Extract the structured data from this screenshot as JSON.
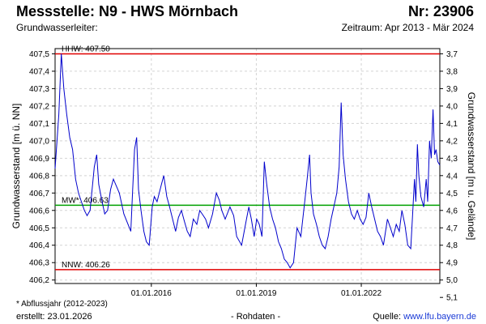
{
  "header": {
    "title": "Messstelle: N9 - HWS Mörnbach",
    "number": "Nr: 23906",
    "aquifer_label": "Grundwasserleiter:",
    "period": "Zeitraum: Apr 2013 - Mär 2024"
  },
  "footer": {
    "footnote": "* Abflussjahr (2012-2023)",
    "created": "erstellt:  23.01.2026",
    "raw_data": "- Rohdaten -",
    "source_prefix": "Quelle: ",
    "source": "www.lfu.bayern.de"
  },
  "chart_data": {
    "type": "line",
    "ylabel": "Grundwasserstand [m ü. NN]",
    "ylabel_right": "Grundwasserstand [m u. Gelände]",
    "ylim": [
      406.18,
      407.53
    ],
    "y_ticks": [
      "406,2",
      "406,3",
      "406,4",
      "406,5",
      "406,6",
      "406,7",
      "406,8",
      "406,9",
      "407,0",
      "407,1",
      "407,2",
      "407,3",
      "407,4",
      "407,5"
    ],
    "y_tick_values": [
      406.2,
      406.3,
      406.4,
      406.5,
      406.6,
      406.7,
      406.8,
      406.9,
      407.0,
      407.1,
      407.2,
      407.3,
      407.4,
      407.5
    ],
    "right_ticks": [
      "3,7",
      "3,8",
      "3,9",
      "4,0",
      "4,1",
      "4,2",
      "4,3",
      "4,4",
      "4,5",
      "4,6",
      "4,7",
      "4,8",
      "4,9",
      "5,0",
      "5,1"
    ],
    "right_tick_values": [
      3.7,
      3.8,
      3.9,
      4.0,
      4.1,
      4.2,
      4.3,
      4.4,
      4.5,
      4.6,
      4.7,
      4.8,
      4.9,
      5.0,
      5.1
    ],
    "right_reference": 411.2,
    "xlim": [
      "2013-04-01",
      "2024-03-31"
    ],
    "x_ticks": [
      "01.01.2016",
      "01.01.2019",
      "01.01.2022"
    ],
    "x_tick_dates": [
      "2016-01-01",
      "2019-01-01",
      "2022-01-01"
    ],
    "grid": true,
    "reference_lines": [
      {
        "label": "HHW: 407.50",
        "value": 407.5,
        "color": "#e00000"
      },
      {
        "label": "MW*: 406.63",
        "value": 406.63,
        "color": "#00a000"
      },
      {
        "label": "NNW: 406.26",
        "value": 406.26,
        "color": "#e00000"
      }
    ],
    "series": [
      {
        "color": "#0000cc",
        "points": [
          [
            "2013-04-01",
            406.84
          ],
          [
            "2013-05-10",
            407.15
          ],
          [
            "2013-06-05",
            407.5
          ],
          [
            "2013-07-01",
            407.3
          ],
          [
            "2013-08-01",
            407.15
          ],
          [
            "2013-09-01",
            407.02
          ],
          [
            "2013-10-01",
            406.95
          ],
          [
            "2013-11-01",
            406.78
          ],
          [
            "2013-12-01",
            406.7
          ],
          [
            "2014-01-01",
            406.65
          ],
          [
            "2014-02-01",
            406.6
          ],
          [
            "2014-03-01",
            406.57
          ],
          [
            "2014-04-01",
            406.6
          ],
          [
            "2014-05-15",
            406.85
          ],
          [
            "2014-06-10",
            406.92
          ],
          [
            "2014-07-01",
            406.75
          ],
          [
            "2014-08-01",
            406.66
          ],
          [
            "2014-09-01",
            406.58
          ],
          [
            "2014-10-01",
            406.6
          ],
          [
            "2014-11-01",
            406.72
          ],
          [
            "2014-12-01",
            406.78
          ],
          [
            "2015-02-01",
            406.7
          ],
          [
            "2015-03-20",
            406.58
          ],
          [
            "2015-06-01",
            406.48
          ],
          [
            "2015-06-20",
            406.72
          ],
          [
            "2015-07-10",
            406.95
          ],
          [
            "2015-08-01",
            407.02
          ],
          [
            "2015-08-20",
            406.72
          ],
          [
            "2015-09-15",
            406.6
          ],
          [
            "2015-10-15",
            406.48
          ],
          [
            "2015-11-10",
            406.42
          ],
          [
            "2015-12-10",
            406.4
          ],
          [
            "2016-01-10",
            406.62
          ],
          [
            "2016-02-01",
            406.68
          ],
          [
            "2016-03-01",
            406.65
          ],
          [
            "2016-04-15",
            406.75
          ],
          [
            "2016-05-10",
            406.8
          ],
          [
            "2016-06-10",
            406.68
          ],
          [
            "2016-07-10",
            406.62
          ],
          [
            "2016-08-10",
            406.55
          ],
          [
            "2016-09-10",
            406.48
          ],
          [
            "2016-10-10",
            406.56
          ],
          [
            "2016-11-10",
            406.6
          ],
          [
            "2016-12-10",
            406.54
          ],
          [
            "2017-01-10",
            406.48
          ],
          [
            "2017-02-10",
            406.45
          ],
          [
            "2017-03-15",
            406.55
          ],
          [
            "2017-04-20",
            406.52
          ],
          [
            "2017-05-20",
            406.6
          ],
          [
            "2017-06-15",
            406.58
          ],
          [
            "2017-07-20",
            406.55
          ],
          [
            "2017-08-20",
            406.5
          ],
          [
            "2017-10-01",
            406.58
          ],
          [
            "2017-11-10",
            406.7
          ],
          [
            "2017-12-10",
            406.66
          ],
          [
            "2018-01-05",
            406.6
          ],
          [
            "2018-02-10",
            406.55
          ],
          [
            "2018-04-01",
            406.62
          ],
          [
            "2018-05-10",
            406.57
          ],
          [
            "2018-06-10",
            406.45
          ],
          [
            "2018-08-01",
            406.4
          ],
          [
            "2018-09-20",
            406.55
          ],
          [
            "2018-10-15",
            406.62
          ],
          [
            "2018-11-10",
            406.55
          ],
          [
            "2018-12-10",
            406.45
          ],
          [
            "2019-01-05",
            406.55
          ],
          [
            "2019-02-01",
            406.52
          ],
          [
            "2019-03-01",
            406.45
          ],
          [
            "2019-03-25",
            406.88
          ],
          [
            "2019-04-20",
            406.75
          ],
          [
            "2019-05-20",
            406.62
          ],
          [
            "2019-06-20",
            406.55
          ],
          [
            "2019-07-20",
            406.5
          ],
          [
            "2019-08-20",
            406.42
          ],
          [
            "2019-09-20",
            406.38
          ],
          [
            "2019-10-20",
            406.32
          ],
          [
            "2019-11-20",
            406.3
          ],
          [
            "2019-12-20",
            406.27
          ],
          [
            "2020-01-25",
            406.3
          ],
          [
            "2020-03-01",
            406.5
          ],
          [
            "2020-04-10",
            406.45
          ],
          [
            "2020-05-20",
            406.65
          ],
          [
            "2020-06-15",
            406.78
          ],
          [
            "2020-07-10",
            406.92
          ],
          [
            "2020-07-25",
            406.7
          ],
          [
            "2020-08-20",
            406.58
          ],
          [
            "2020-09-20",
            406.52
          ],
          [
            "2020-10-20",
            406.45
          ],
          [
            "2020-11-20",
            406.4
          ],
          [
            "2020-12-20",
            406.38
          ],
          [
            "2021-01-20",
            406.45
          ],
          [
            "2021-02-20",
            406.55
          ],
          [
            "2021-03-20",
            406.62
          ],
          [
            "2021-04-20",
            406.7
          ],
          [
            "2021-05-15",
            406.85
          ],
          [
            "2021-06-05",
            407.22
          ],
          [
            "2021-06-25",
            406.92
          ],
          [
            "2021-07-20",
            406.78
          ],
          [
            "2021-08-20",
            406.65
          ],
          [
            "2021-09-20",
            406.58
          ],
          [
            "2021-10-20",
            406.55
          ],
          [
            "2021-11-20",
            406.6
          ],
          [
            "2021-12-20",
            406.55
          ],
          [
            "2022-01-20",
            406.52
          ],
          [
            "2022-02-20",
            406.56
          ],
          [
            "2022-03-20",
            406.7
          ],
          [
            "2022-04-20",
            406.62
          ],
          [
            "2022-05-20",
            406.55
          ],
          [
            "2022-06-20",
            406.48
          ],
          [
            "2022-07-20",
            406.45
          ],
          [
            "2022-08-20",
            406.4
          ],
          [
            "2022-10-01",
            406.55
          ],
          [
            "2022-11-01",
            406.5
          ],
          [
            "2022-12-01",
            406.45
          ],
          [
            "2023-01-01",
            406.52
          ],
          [
            "2023-02-01",
            406.48
          ],
          [
            "2023-03-01",
            406.6
          ],
          [
            "2023-04-01",
            406.52
          ],
          [
            "2023-05-01",
            406.4
          ],
          [
            "2023-06-01",
            406.38
          ],
          [
            "2023-06-25",
            406.62
          ],
          [
            "2023-07-10",
            406.78
          ],
          [
            "2023-07-25",
            406.65
          ],
          [
            "2023-08-10",
            406.98
          ],
          [
            "2023-08-25",
            406.8
          ],
          [
            "2023-09-15",
            406.68
          ],
          [
            "2023-10-15",
            406.62
          ],
          [
            "2023-11-10",
            406.78
          ],
          [
            "2023-11-25",
            406.65
          ],
          [
            "2023-12-15",
            407.0
          ],
          [
            "2024-01-01",
            406.9
          ],
          [
            "2024-01-20",
            407.18
          ],
          [
            "2024-02-05",
            406.92
          ],
          [
            "2024-02-20",
            406.95
          ],
          [
            "2024-03-10",
            406.88
          ],
          [
            "2024-03-31",
            406.86
          ]
        ]
      }
    ]
  }
}
